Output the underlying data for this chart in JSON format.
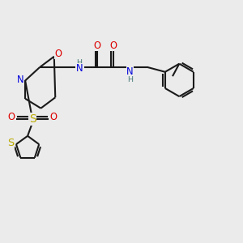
{
  "bg_color": "#ebebeb",
  "bond_color": "#1a1a1a",
  "bond_lw": 1.5,
  "atom_colors": {
    "N": "#0000dd",
    "O": "#dd0000",
    "S_yellow": "#bbaa00",
    "H": "#447777",
    "C": "#1a1a1a"
  },
  "fs": 7.8
}
